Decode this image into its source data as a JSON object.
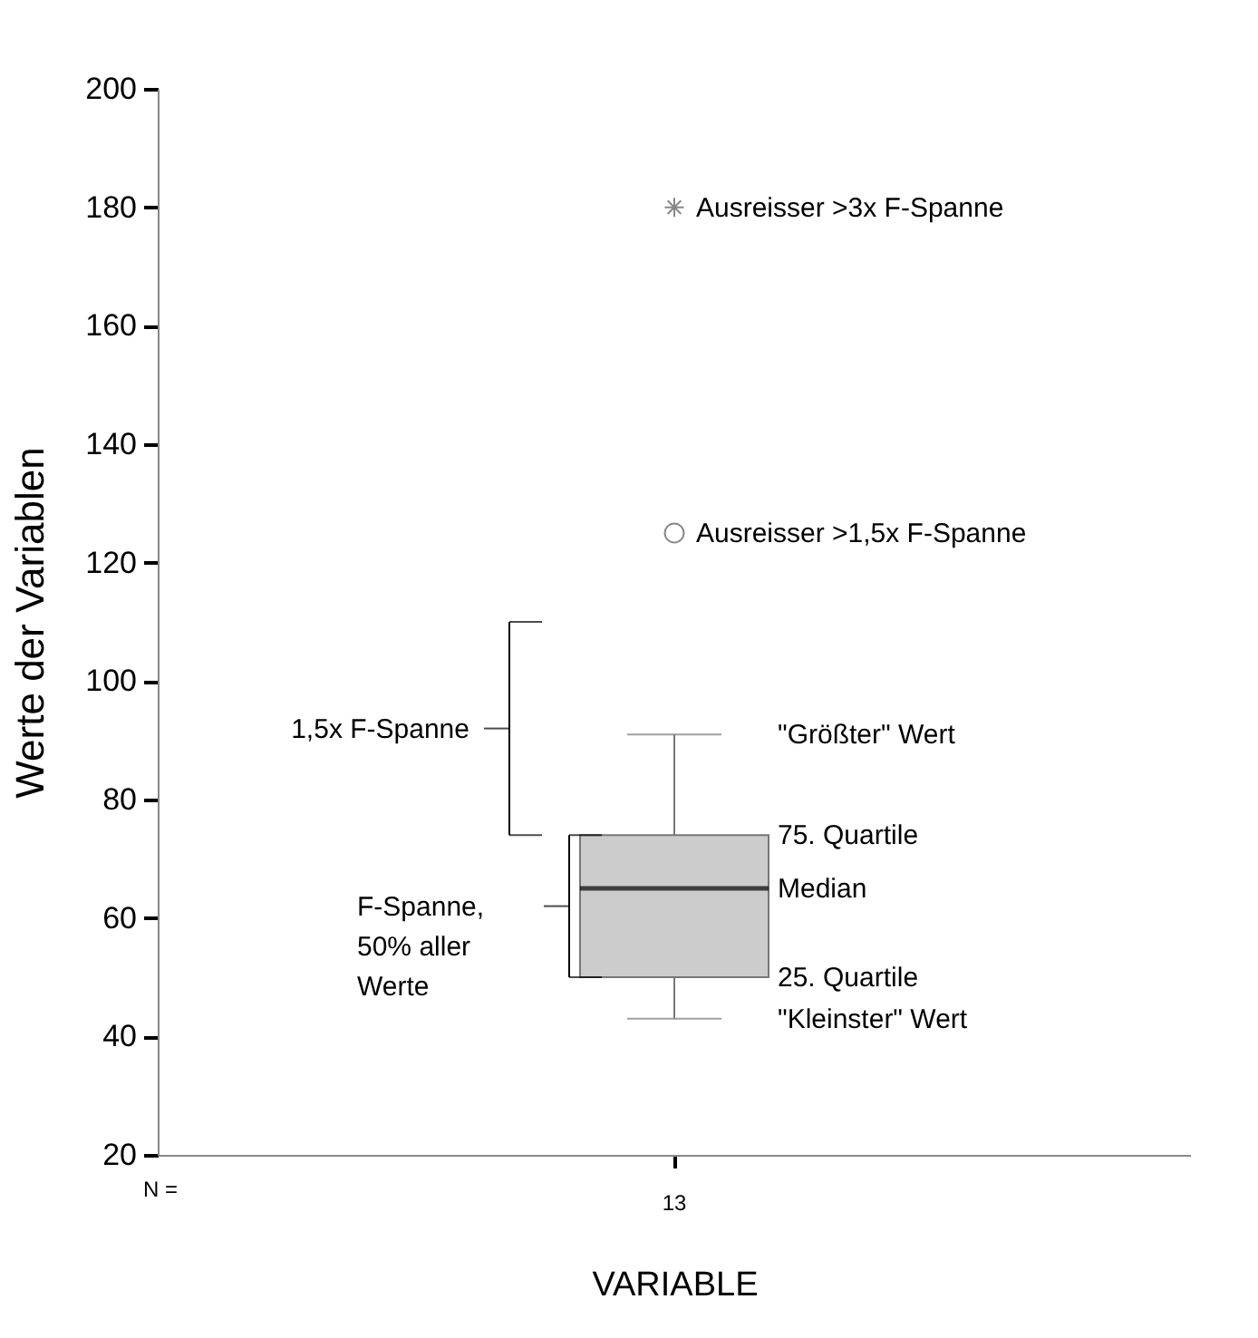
{
  "chart_data": {
    "type": "box",
    "categories": [
      "13"
    ],
    "color": "#cccccc",
    "boxes": [
      {
        "low": 43,
        "q1": 50,
        "median": 65,
        "q3": 74,
        "high": 91,
        "outliers": [
          125,
          180
        ]
      }
    ],
    "ylim": [
      20,
      200
    ],
    "yticks": [
      20,
      40,
      60,
      80,
      100,
      120,
      140,
      160,
      180,
      200
    ],
    "xlabel": "VARIABLE",
    "ylabel": "Werte der Variablen",
    "grid": false,
    "annotations": [
      "N =",
      "Ausreisser >3x F-Spanne",
      "Ausreisser >1,5x F-Spanne",
      "\"Größter\" Wert",
      "75. Quartile",
      "Median",
      "25. Quartile",
      "\"Kleinster\" Wert",
      "1,5x F-Spanne",
      "F-Spanne, 50% aller Werte"
    ]
  }
}
